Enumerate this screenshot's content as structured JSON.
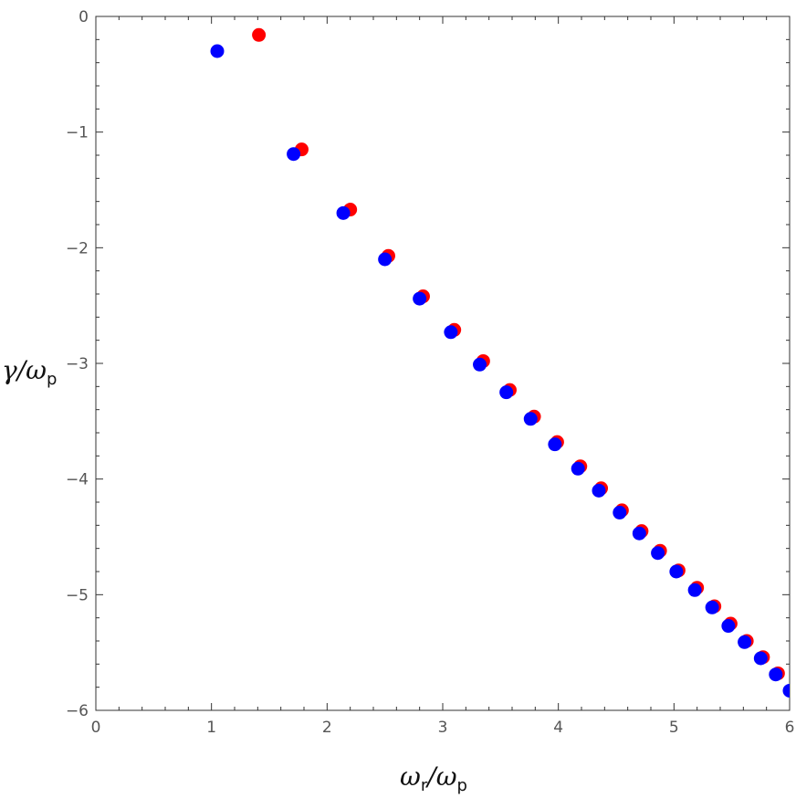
{
  "chart_data": {
    "type": "scatter",
    "xlim": [
      0,
      6
    ],
    "ylim": [
      -6,
      0
    ],
    "grid": false,
    "xticks": [
      "0",
      "1",
      "2",
      "3",
      "4",
      "5",
      "6"
    ],
    "yticks": [
      "0",
      "−1",
      "−2",
      "−3",
      "−4",
      "−5",
      "−6"
    ],
    "xlabel": {
      "main": "ω",
      "sub1": "r",
      "sep": "/ω",
      "sub2": "p"
    },
    "ylabel": {
      "main": "γ/ω",
      "sub": "p"
    },
    "series": [
      {
        "color": "#ff0000",
        "points": [
          [
            1.41,
            -0.16
          ],
          [
            1.78,
            -1.15
          ],
          [
            2.2,
            -1.67
          ],
          [
            2.53,
            -2.07
          ],
          [
            2.83,
            -2.42
          ],
          [
            3.1,
            -2.71
          ],
          [
            3.35,
            -2.98
          ],
          [
            3.58,
            -3.23
          ],
          [
            3.79,
            -3.46
          ],
          [
            3.99,
            -3.68
          ],
          [
            4.19,
            -3.89
          ],
          [
            4.37,
            -4.08
          ],
          [
            4.55,
            -4.27
          ],
          [
            4.72,
            -4.45
          ],
          [
            4.88,
            -4.62
          ],
          [
            5.04,
            -4.79
          ],
          [
            5.2,
            -4.94
          ],
          [
            5.35,
            -5.1
          ],
          [
            5.49,
            -5.25
          ],
          [
            5.63,
            -5.4
          ],
          [
            5.77,
            -5.54
          ],
          [
            5.9,
            -5.68
          ]
        ]
      },
      {
        "color": "#0000ff",
        "points": [
          [
            1.05,
            -0.3
          ],
          [
            1.71,
            -1.19
          ],
          [
            2.14,
            -1.7
          ],
          [
            2.5,
            -2.1
          ],
          [
            2.8,
            -2.44
          ],
          [
            3.07,
            -2.73
          ],
          [
            3.32,
            -3.01
          ],
          [
            3.55,
            -3.25
          ],
          [
            3.76,
            -3.48
          ],
          [
            3.97,
            -3.7
          ],
          [
            4.17,
            -3.91
          ],
          [
            4.35,
            -4.1
          ],
          [
            4.53,
            -4.29
          ],
          [
            4.7,
            -4.47
          ],
          [
            4.86,
            -4.64
          ],
          [
            5.02,
            -4.8
          ],
          [
            5.18,
            -4.96
          ],
          [
            5.33,
            -5.11
          ],
          [
            5.47,
            -5.27
          ],
          [
            5.61,
            -5.41
          ],
          [
            5.75,
            -5.55
          ],
          [
            5.88,
            -5.69
          ],
          [
            6.0,
            -5.83
          ]
        ]
      }
    ]
  }
}
